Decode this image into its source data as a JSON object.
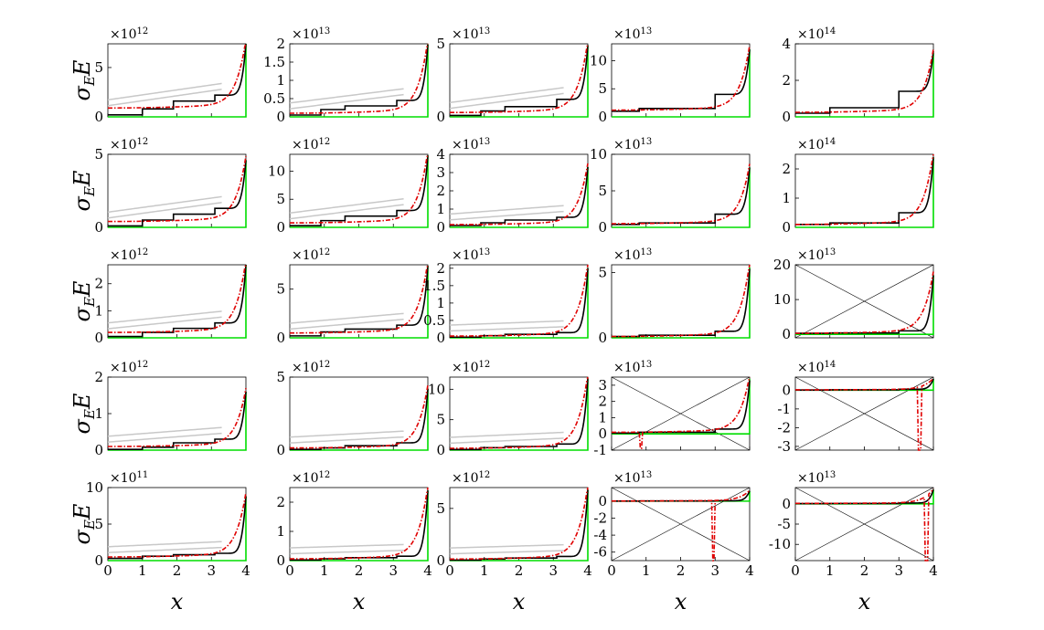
{
  "figure": {
    "ylabel_main": "σ",
    "ylabel_sub": "E",
    "ylabel_tail": "E",
    "xlabel": "x"
  },
  "chart_data": [
    {
      "type": "line",
      "multiplier": "×10",
      "exponent": "12",
      "ylim": [
        0,
        7.4
      ],
      "yticks": [
        0,
        5
      ],
      "xlim": [
        0,
        4
      ],
      "xticks": [
        0,
        1,
        2,
        3,
        4
      ],
      "final_value": 7.4,
      "steps": [
        [
          0,
          0.2
        ],
        [
          1,
          0.8
        ],
        [
          1.9,
          1.6
        ],
        [
          3.1,
          2.2
        ]
      ],
      "base": 0.9,
      "crossing": false
    },
    {
      "type": "line",
      "multiplier": "×10",
      "exponent": "13",
      "ylim": [
        0,
        2
      ],
      "yticks": [
        0,
        0.5,
        1,
        1.5,
        2
      ],
      "xlim": [
        0,
        4
      ],
      "xticks": [
        0,
        1,
        2,
        3,
        4
      ],
      "final_value": 1.98,
      "steps": [
        [
          0,
          0.05
        ],
        [
          0.9,
          0.2
        ],
        [
          1.6,
          0.3
        ],
        [
          3.1,
          0.45
        ]
      ],
      "base": 0.1,
      "crossing": false
    },
    {
      "type": "line",
      "multiplier": "×10",
      "exponent": "13",
      "ylim": [
        0,
        5
      ],
      "yticks": [
        0,
        5
      ],
      "xlim": [
        0,
        4
      ],
      "xticks": [
        0,
        1,
        2,
        3,
        4
      ],
      "final_value": 4.9,
      "steps": [
        [
          0,
          0.1
        ],
        [
          0.9,
          0.4
        ],
        [
          1.6,
          0.7
        ],
        [
          3.1,
          1.2
        ]
      ],
      "base": 0.3,
      "crossing": false
    },
    {
      "type": "line",
      "multiplier": "×10",
      "exponent": "13",
      "ylim": [
        0,
        13
      ],
      "yticks": [
        0,
        5,
        10
      ],
      "xlim": [
        0,
        4
      ],
      "xticks": [
        0,
        1,
        2,
        3,
        4
      ],
      "final_value": 12,
      "black_end": 12,
      "steps": [
        [
          0,
          1.0
        ],
        [
          0.8,
          1.5
        ],
        [
          3.0,
          4.0
        ]
      ],
      "base": 1.2,
      "crossing": false
    },
    {
      "type": "line",
      "multiplier": "×10",
      "exponent": "14",
      "ylim": [
        0,
        4
      ],
      "yticks": [
        0,
        2,
        4
      ],
      "xlim": [
        0,
        4
      ],
      "xticks": [
        0,
        1,
        2,
        3,
        4
      ],
      "final_value": 3.5,
      "black_end": 3.6,
      "steps": [
        [
          0,
          0.2
        ],
        [
          1,
          0.5
        ],
        [
          3.0,
          1.4
        ]
      ],
      "base": 0.25,
      "crossing": false
    },
    {
      "type": "line",
      "multiplier": "×10",
      "exponent": "12",
      "ylim": [
        0,
        5
      ],
      "yticks": [
        0,
        5
      ],
      "xlim": [
        0,
        4
      ],
      "xticks": [
        0,
        1,
        2,
        3,
        4
      ],
      "final_value": 4.6,
      "steps": [
        [
          0,
          0.1
        ],
        [
          1,
          0.5
        ],
        [
          1.9,
          0.9
        ],
        [
          3.1,
          1.3
        ]
      ],
      "base": 0.4,
      "crossing": false
    },
    {
      "type": "line",
      "multiplier": "×10",
      "exponent": "12",
      "ylim": [
        0,
        13
      ],
      "yticks": [
        0,
        5,
        10
      ],
      "xlim": [
        0,
        4
      ],
      "xticks": [
        0,
        1,
        2,
        3,
        4
      ],
      "final_value": 12.8,
      "steps": [
        [
          0,
          0.3
        ],
        [
          0.9,
          1.2
        ],
        [
          1.6,
          2.0
        ],
        [
          3.1,
          3.0
        ]
      ],
      "base": 0.8,
      "crossing": false
    },
    {
      "type": "line",
      "multiplier": "×10",
      "exponent": "13",
      "ylim": [
        0,
        4
      ],
      "yticks": [
        0,
        1,
        2,
        3,
        4
      ],
      "xlim": [
        0,
        4
      ],
      "xticks": [
        0,
        1,
        2,
        3,
        4
      ],
      "final_value": 3.3,
      "steps": [
        [
          0,
          0.1
        ],
        [
          0.9,
          0.25
        ],
        [
          1.6,
          0.4
        ],
        [
          3.1,
          0.55
        ]
      ],
      "base": 0.15,
      "crossing": false
    },
    {
      "type": "line",
      "multiplier": "×10",
      "exponent": "13",
      "ylim": [
        0,
        10
      ],
      "yticks": [
        0,
        5,
        10
      ],
      "xlim": [
        0,
        4
      ],
      "xticks": [
        0,
        1,
        2,
        3,
        4
      ],
      "final_value": 8.2,
      "black_end": 8.2,
      "steps": [
        [
          0,
          0.4
        ],
        [
          0.8,
          0.6
        ],
        [
          3.0,
          1.8
        ]
      ],
      "base": 0.5,
      "crossing": false
    },
    {
      "type": "line",
      "multiplier": "×10",
      "exponent": "14",
      "ylim": [
        0,
        2.5
      ],
      "yticks": [
        0,
        1,
        2
      ],
      "xlim": [
        0,
        4
      ],
      "xticks": [
        0,
        1,
        2,
        3,
        4
      ],
      "final_value": 2.4,
      "black_end": 2.4,
      "steps": [
        [
          0,
          0.1
        ],
        [
          1,
          0.15
        ],
        [
          3.0,
          0.5
        ]
      ],
      "base": 0.1,
      "crossing": false
    },
    {
      "type": "line",
      "multiplier": "×10",
      "exponent": "12",
      "ylim": [
        0,
        2.7
      ],
      "yticks": [
        0,
        1,
        2
      ],
      "xlim": [
        0,
        4
      ],
      "xticks": [
        0,
        1,
        2,
        3,
        4
      ],
      "final_value": 2.7,
      "steps": [
        [
          0,
          0.05
        ],
        [
          1,
          0.2
        ],
        [
          1.9,
          0.35
        ],
        [
          3.1,
          0.55
        ]
      ],
      "base": 0.2,
      "crossing": false
    },
    {
      "type": "line",
      "multiplier": "×10",
      "exponent": "12",
      "ylim": [
        0,
        7.5
      ],
      "yticks": [
        0,
        5
      ],
      "xlim": [
        0,
        4
      ],
      "xticks": [
        0,
        1,
        2,
        3,
        4
      ],
      "final_value": 7.4,
      "steps": [
        [
          0,
          0.2
        ],
        [
          0.9,
          0.6
        ],
        [
          1.6,
          0.9
        ],
        [
          3.1,
          1.3
        ]
      ],
      "base": 0.5,
      "crossing": false
    },
    {
      "type": "line",
      "multiplier": "×10",
      "exponent": "13",
      "ylim": [
        0,
        2.1
      ],
      "yticks": [
        0,
        0.5,
        1,
        1.5,
        2
      ],
      "xlim": [
        0,
        4
      ],
      "xticks": [
        0,
        1,
        2,
        3,
        4
      ],
      "final_value": 2,
      "steps": [
        [
          0,
          0.02
        ],
        [
          0.9,
          0.06
        ],
        [
          1.6,
          0.1
        ],
        [
          3.1,
          0.15
        ]
      ],
      "base": 0.05,
      "crossing": false
    },
    {
      "type": "line",
      "multiplier": "×10",
      "exponent": "13",
      "ylim": [
        0,
        5.6
      ],
      "yticks": [
        0,
        5
      ],
      "xlim": [
        0,
        4
      ],
      "xticks": [
        0,
        1,
        2,
        3,
        4
      ],
      "final_value": 5.4,
      "black_end": 5.3,
      "steps": [
        [
          0,
          0.1
        ],
        [
          0.8,
          0.2
        ],
        [
          3.0,
          0.5
        ]
      ],
      "base": 0.1,
      "crossing": false
    },
    {
      "type": "line",
      "multiplier": "×10",
      "exponent": "13",
      "ylim": [
        -1,
        20
      ],
      "yticks": [
        0,
        10,
        20
      ],
      "xlim": [
        0,
        4
      ],
      "xticks": [
        0,
        1,
        2,
        3,
        4
      ],
      "final_value": 17,
      "black_end": 17,
      "steps": [
        [
          0,
          0.3
        ],
        [
          1,
          0.4
        ],
        [
          3.0,
          1.0
        ]
      ],
      "base": 0.3,
      "crossing": true
    },
    {
      "type": "line",
      "multiplier": "×10",
      "exponent": "12",
      "ylim": [
        0,
        2
      ],
      "yticks": [
        0,
        1,
        2
      ],
      "xlim": [
        0,
        4
      ],
      "xticks": [
        0,
        1,
        2,
        3,
        4
      ],
      "final_value": 1.6,
      "steps": [
        [
          0,
          0.02
        ],
        [
          1,
          0.08
        ],
        [
          1.9,
          0.2
        ],
        [
          3.1,
          0.3
        ]
      ],
      "base": 0.1,
      "crossing": false
    },
    {
      "type": "line",
      "multiplier": "×10",
      "exponent": "12",
      "ylim": [
        0,
        5
      ],
      "yticks": [
        0,
        5
      ],
      "xlim": [
        0,
        4
      ],
      "xticks": [
        0,
        1,
        2,
        3,
        4
      ],
      "final_value": 4.2,
      "steps": [
        [
          0,
          0.05
        ],
        [
          0.9,
          0.15
        ],
        [
          1.6,
          0.3
        ],
        [
          3.1,
          0.5
        ]
      ],
      "base": 0.15,
      "crossing": false
    },
    {
      "type": "line",
      "multiplier": "×10",
      "exponent": "12",
      "ylim": [
        0,
        12
      ],
      "yticks": [
        0,
        5,
        10
      ],
      "xlim": [
        0,
        4
      ],
      "xticks": [
        0,
        1,
        2,
        3,
        4
      ],
      "final_value": 11.8,
      "steps": [
        [
          0,
          0.1
        ],
        [
          0.9,
          0.4
        ],
        [
          1.6,
          0.6
        ],
        [
          3.1,
          1.0
        ]
      ],
      "base": 0.3,
      "crossing": false
    },
    {
      "type": "line",
      "multiplier": "×10",
      "exponent": "13",
      "ylim": [
        -1,
        3.5
      ],
      "yticks": [
        -1,
        0,
        1,
        2,
        3
      ],
      "xlim": [
        0,
        4
      ],
      "xticks": [
        0,
        1,
        2,
        3,
        4
      ],
      "final_value": 3.4,
      "black_end": 3.3,
      "steps": [
        [
          0,
          0.05
        ],
        [
          0.8,
          0.1
        ],
        [
          3.0,
          0.3
        ]
      ],
      "base": 0.1,
      "crossing": true,
      "dip_x": 0.85,
      "dip_value": -0.9
    },
    {
      "type": "line",
      "multiplier": "×10",
      "exponent": "14",
      "ylim": [
        -3.2,
        0.7
      ],
      "yticks": [
        -3,
        -2,
        -1,
        0
      ],
      "xlim": [
        0,
        4
      ],
      "xticks": [
        0,
        1,
        2,
        3,
        4
      ],
      "final_value": 0.6,
      "black_end": 0.6,
      "steps": [
        [
          0,
          0.01
        ],
        [
          1,
          0.02
        ],
        [
          3.0,
          0.05
        ]
      ],
      "base": 0.02,
      "crossing": true,
      "dip_x": 3.6,
      "dip_value": -3.2
    },
    {
      "type": "line",
      "multiplier": "×10",
      "exponent": "11",
      "ylim": [
        0,
        10
      ],
      "yticks": [
        0,
        5,
        10
      ],
      "xlim": [
        0,
        4
      ],
      "xticks": [
        0,
        1,
        2,
        3,
        4
      ],
      "final_value": 8.8,
      "steps": [
        [
          0,
          0.3
        ],
        [
          1,
          0.6
        ],
        [
          1.9,
          0.8
        ],
        [
          3.1,
          1.0
        ]
      ],
      "base": 0.5,
      "crossing": false
    },
    {
      "type": "line",
      "multiplier": "×10",
      "exponent": "12",
      "ylim": [
        0,
        2.5
      ],
      "yticks": [
        0,
        1,
        2
      ],
      "xlim": [
        0,
        4
      ],
      "xticks": [
        0,
        1,
        2,
        3,
        4
      ],
      "final_value": 2.4,
      "steps": [
        [
          0,
          0.02
        ],
        [
          0.9,
          0.06
        ],
        [
          1.6,
          0.1
        ],
        [
          3.1,
          0.15
        ]
      ],
      "base": 0.06,
      "crossing": false
    },
    {
      "type": "line",
      "multiplier": "×10",
      "exponent": "12",
      "ylim": [
        0,
        7
      ],
      "yticks": [
        0,
        5
      ],
      "xlim": [
        0,
        4
      ],
      "xticks": [
        0,
        1,
        2,
        3,
        4
      ],
      "final_value": 6.8,
      "steps": [
        [
          0,
          0.05
        ],
        [
          0.9,
          0.15
        ],
        [
          1.6,
          0.25
        ],
        [
          3.1,
          0.4
        ]
      ],
      "base": 0.15,
      "crossing": false
    },
    {
      "type": "line",
      "multiplier": "×10",
      "exponent": "13",
      "ylim": [
        -7,
        1.6
      ],
      "yticks": [
        -6,
        -4,
        -2,
        0
      ],
      "xlim": [
        0,
        4
      ],
      "xticks": [
        0,
        1,
        2,
        3,
        4
      ],
      "final_value": 1.2,
      "black_end": 1.2,
      "steps": [
        [
          0,
          0.01
        ],
        [
          0.8,
          0.02
        ],
        [
          3.0,
          0.05
        ]
      ],
      "base": 0.02,
      "crossing": true,
      "dip_x": 2.95,
      "dip_value": -7
    },
    {
      "type": "line",
      "multiplier": "×10",
      "exponent": "13",
      "ylim": [
        -14,
        4
      ],
      "yticks": [
        -10,
        -5,
        0
      ],
      "xlim": [
        0,
        4
      ],
      "xticks": [
        0,
        1,
        2,
        3,
        4
      ],
      "final_value": 3.5,
      "black_end": 3.5,
      "steps": [
        [
          0,
          0.05
        ],
        [
          1,
          0.08
        ],
        [
          3.0,
          0.2
        ]
      ],
      "base": 0.1,
      "crossing": true,
      "dip_x": 3.8,
      "dip_value": -14
    }
  ]
}
